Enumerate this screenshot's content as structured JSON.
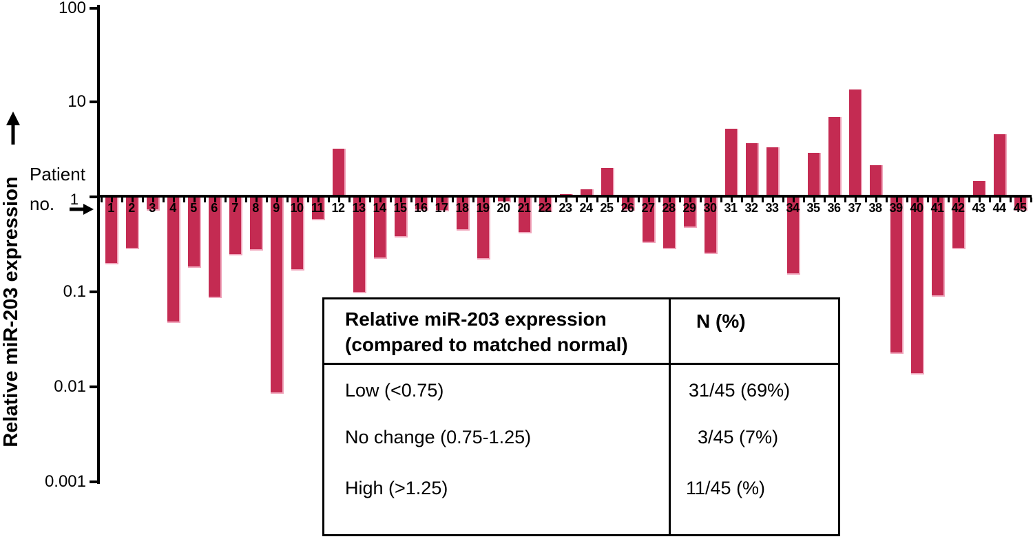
{
  "figure": {
    "y_axis_title": "Relative miR-203 expression",
    "x_axis_title_line1": "Patient",
    "x_axis_title_line2": "no.",
    "y_tick_labels": [
      "100",
      "10",
      "1",
      "0.1",
      "0.01",
      "0.001"
    ]
  },
  "chart_data": {
    "type": "bar",
    "title": "",
    "xlabel": "Patient no.",
    "ylabel": "Relative miR-203 expression",
    "y_scale": "log",
    "ylim": [
      0.001,
      100
    ],
    "baseline_value": 1,
    "grid": false,
    "legend": "none",
    "bar_color": "#C42B52",
    "bar_edge_color": "#F0A6BC",
    "axis_color": "#000000",
    "categories": [
      "1",
      "2",
      "3",
      "4",
      "5",
      "6",
      "7",
      "8",
      "9",
      "10",
      "11",
      "12",
      "13",
      "14",
      "15",
      "16",
      "17",
      "18",
      "19",
      "20",
      "21",
      "22",
      "23",
      "24",
      "25",
      "26",
      "27",
      "28",
      "29",
      "30",
      "31",
      "32",
      "33",
      "34",
      "35",
      "36",
      "37",
      "38",
      "39",
      "40",
      "41",
      "42",
      "43",
      "44",
      "45"
    ],
    "values": [
      0.2,
      0.29,
      0.74,
      0.049,
      0.185,
      0.089,
      0.25,
      0.28,
      0.0087,
      0.172,
      0.59,
      3.2,
      0.1,
      0.23,
      0.385,
      0.74,
      0.73,
      0.455,
      0.225,
      0.9,
      0.43,
      0.72,
      1.07,
      1.21,
      2.0,
      0.74,
      0.34,
      0.29,
      0.485,
      0.26,
      5.2,
      3.7,
      3.3,
      0.157,
      2.9,
      6.9,
      13.4,
      2.15,
      0.023,
      0.014,
      0.092,
      0.29,
      1.47,
      4.6,
      0.74
    ]
  },
  "table": {
    "header_line1": "Relative miR-203 expression",
    "header_line2": "(compared to matched normal)",
    "header_col2": "N (%)",
    "rows": [
      {
        "label": "Low (<0.75)",
        "value": "31/45 (69%)"
      },
      {
        "label": "No change (0.75-1.25)",
        "value": "3/45 (7%)"
      },
      {
        "label": "High (>1.25)",
        "value": "11/45 (%)"
      }
    ]
  }
}
